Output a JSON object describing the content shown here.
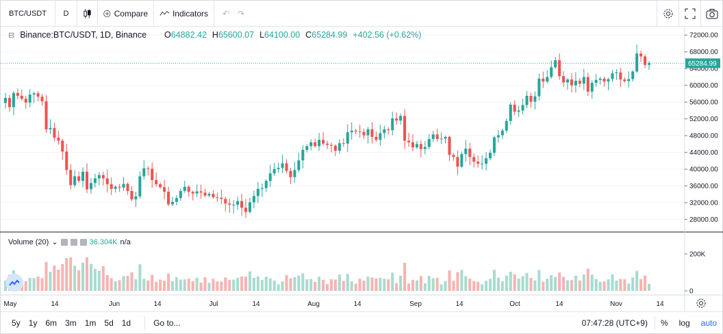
{
  "toolbar": {
    "symbol": "BTC/USDT",
    "interval": "D",
    "compare_label": "Compare",
    "indicators_label": "Indicators"
  },
  "legend": {
    "title": "Binance:BTC/USDT, 1D, Binance",
    "o_label": "O",
    "o_value": "64882.42",
    "h_label": "H",
    "h_value": "65600.07",
    "l_label": "L",
    "l_value": "64100.00",
    "c_label": "C",
    "c_value": "65284.99",
    "change": "+402.56 (+0.62%)"
  },
  "volume_legend": {
    "title": "Volume (20)",
    "value": "36.304K",
    "extra": "n/a"
  },
  "bottom": {
    "ranges": [
      "5y",
      "1y",
      "6m",
      "3m",
      "1m",
      "5d",
      "1d"
    ],
    "goto_label": "Go to...",
    "time": "07:47:28 (UTC+9)",
    "percent": "%",
    "log": "log",
    "auto": "auto"
  },
  "colors": {
    "up": "#26a69a",
    "down": "#ef5350",
    "vol_up": "#a8dbcf",
    "vol_down": "#f7b3b1",
    "last_price_bg": "#26a69a"
  },
  "chart_data": {
    "type": "candlestick",
    "symbol": "BTC/USDT",
    "interval": "1D",
    "ylim": [
      25000,
      74000
    ],
    "price_ticks": [
      28000,
      32000,
      36000,
      40000,
      44000,
      48000,
      52000,
      56000,
      60000,
      64000,
      68000,
      72000
    ],
    "price_tick_labels": [
      "28000.00",
      "32000.00",
      "36000.00",
      "40000.00",
      "44000.00",
      "48000.00",
      "52000.00",
      "56000.00",
      "60000.00",
      "64000.00",
      "68000.00",
      "72000.00"
    ],
    "last_price": 65284.99,
    "last_price_label": "65284.99",
    "volume_ticks": [
      0,
      200000
    ],
    "volume_tick_labels": [
      "0",
      "200K"
    ],
    "x_ticks": [
      "May",
      "14",
      "Jun",
      "14",
      "Jul",
      "14",
      "Aug",
      "14",
      "Sep",
      "14",
      "Oct",
      "14",
      "Nov",
      "14"
    ],
    "close_series": [
      57000,
      54800,
      58200,
      57500,
      56800,
      55900,
      57800,
      58100,
      57300,
      56200,
      49500,
      49800,
      47500,
      46800,
      44200,
      39800,
      36200,
      38300,
      37200,
      39400,
      35200,
      36700,
      37800,
      38600,
      37800,
      36400,
      35300,
      35800,
      35600,
      36500,
      34800,
      32800,
      33500,
      38300,
      40200,
      40100,
      37400,
      36400,
      35700,
      34600,
      31600,
      32200,
      33100,
      34800,
      35800,
      34600,
      34200,
      34700,
      34400,
      33700,
      34100,
      33300,
      33200,
      32900,
      31800,
      31500,
      31500,
      32400,
      30800,
      29800,
      32100,
      33600,
      35300,
      35500,
      37200,
      39000,
      40000,
      40300,
      41400,
      39600,
      38100,
      39800,
      42100,
      44600,
      45500,
      46400,
      45500,
      47000,
      46100,
      45800,
      45600,
      44400,
      46200,
      46100,
      48800,
      49200,
      49000,
      48900,
      48100,
      49500,
      47700,
      47000,
      48600,
      49500,
      49300,
      52100,
      51600,
      52700,
      46800,
      46400,
      45200,
      46000,
      44800,
      45300,
      47200,
      48300,
      47200,
      47300,
      47700,
      43400,
      42900,
      40600,
      43600,
      44900,
      42900,
      41800,
      41300,
      41300,
      42600,
      43900,
      47600,
      48100,
      49200,
      51500,
      55400,
      53700,
      54000,
      55300,
      57500,
      56100,
      57400,
      61600,
      60900,
      62000,
      64300,
      66000,
      62200,
      60700,
      61400,
      60000,
      61100,
      60400,
      62000,
      58500,
      60600,
      61300,
      61600,
      60900,
      61500,
      62900,
      63100,
      61400,
      61000,
      61500,
      63300,
      67600,
      66900,
      64900,
      65285
    ]
  }
}
